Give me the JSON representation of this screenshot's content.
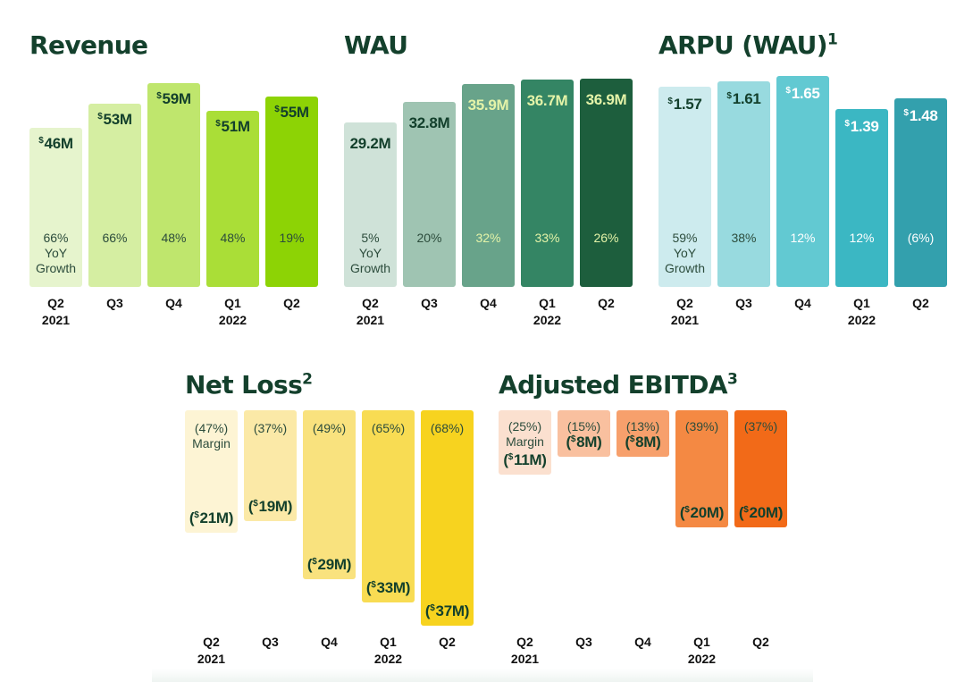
{
  "chart_data": [
    {
      "type": "bar",
      "key": "revenue",
      "title": "Revenue",
      "title_superscript": "",
      "categories": [
        "Q2\n2021",
        "Q3",
        "Q4",
        "Q1\n2022",
        "Q2"
      ],
      "values": [
        46,
        53,
        59,
        51,
        55
      ],
      "value_labels": [
        "46M",
        "53M",
        "59M",
        "51M",
        "55M"
      ],
      "value_prefix": "$",
      "value_negative": false,
      "secondary_labels": [
        "66%\nYoY\nGrowth",
        "66%",
        "48%",
        "48%",
        "19%"
      ],
      "secondary_name": "YoY Growth",
      "colors": [
        "#e6f4cd",
        "#d5eea2",
        "#bfe66d",
        "#aade37",
        "#8dd305"
      ],
      "value_colors": [
        "#13402c",
        "#13402c",
        "#13402c",
        "#13402c",
        "#13402c"
      ],
      "secondary_colors": [
        "#2c4c3c",
        "#2c4c3c",
        "#2c4c3c",
        "#2c4c3c",
        "#2c4c3c"
      ],
      "ylim": [
        0,
        62
      ]
    },
    {
      "type": "bar",
      "key": "wau",
      "title": "WAU",
      "title_superscript": "",
      "categories": [
        "Q2\n2021",
        "Q3",
        "Q4",
        "Q1\n2022",
        "Q2"
      ],
      "values": [
        29.2,
        32.8,
        35.9,
        36.7,
        36.9
      ],
      "value_labels": [
        "29.2M",
        "32.8M",
        "35.9M",
        "36.7M",
        "36.9M"
      ],
      "value_prefix": "",
      "value_negative": false,
      "secondary_labels": [
        "5%\nYoY\nGrowth",
        "20%",
        "32%",
        "33%",
        "26%"
      ],
      "secondary_name": "YoY Growth",
      "colors": [
        "#cfe2d8",
        "#9fc4b2",
        "#68a38a",
        "#348564",
        "#1d5e3d"
      ],
      "value_colors": [
        "#13402c",
        "#13402c",
        "#e4f3a8",
        "#e4f3a8",
        "#e4f3a8"
      ],
      "secondary_colors": [
        "#2c4c3c",
        "#2c4c3c",
        "#e4f3a8",
        "#e4f3a8",
        "#e4f3a8"
      ],
      "ylim": [
        0,
        38
      ]
    },
    {
      "type": "bar",
      "key": "arpu",
      "title": "ARPU (WAU)",
      "title_superscript": "1",
      "categories": [
        "Q2\n2021",
        "Q3",
        "Q4",
        "Q1\n2022",
        "Q2"
      ],
      "values": [
        1.57,
        1.61,
        1.65,
        1.39,
        1.48
      ],
      "value_labels": [
        "1.57",
        "1.61",
        "1.65",
        "1.39",
        "1.48"
      ],
      "value_prefix": "$",
      "value_negative": false,
      "secondary_labels": [
        "59%\nYoY\nGrowth",
        "38%",
        "12%",
        "12%",
        "(6%)"
      ],
      "secondary_name": "YoY Growth",
      "colors": [
        "#cdebee",
        "#98dadf",
        "#62c9d2",
        "#3bb7c3",
        "#33a0ad"
      ],
      "value_colors": [
        "#13402c",
        "#13402c",
        "#ffffff",
        "#ffffff",
        "#ffffff"
      ],
      "secondary_colors": [
        "#2c4c3c",
        "#2c4c3c",
        "#ffffff",
        "#ffffff",
        "#ffffff"
      ],
      "ylim": [
        0,
        1.68
      ]
    },
    {
      "type": "bar",
      "key": "net_loss",
      "title": "Net Loss",
      "title_superscript": "2",
      "categories": [
        "Q2\n2021",
        "Q3",
        "Q4",
        "Q1\n2022",
        "Q2"
      ],
      "values": [
        -21,
        -19,
        -29,
        -33,
        -37
      ],
      "value_labels": [
        "21M",
        "19M",
        "29M",
        "33M",
        "37M"
      ],
      "value_prefix": "$",
      "value_negative": true,
      "secondary_labels": [
        "(47%)\nMargin",
        "(37%)",
        "(49%)",
        "(65%)",
        "(68%)"
      ],
      "secondary_name": "Margin",
      "colors": [
        "#fdf4d4",
        "#fbe9a7",
        "#f9e27e",
        "#f8dc53",
        "#f7d31f"
      ],
      "value_colors": [
        "#13402c",
        "#13402c",
        "#13402c",
        "#13402c",
        "#13402c"
      ],
      "secondary_colors": [
        "#2c4c3c",
        "#2c4c3c",
        "#2c4c3c",
        "#2c4c3c",
        "#2c4c3c"
      ],
      "ylim": [
        -37,
        0
      ]
    },
    {
      "type": "bar",
      "key": "adj_ebitda",
      "title": "Adjusted EBITDA",
      "title_superscript": "3",
      "categories": [
        "Q2\n2021",
        "Q3",
        "Q4",
        "Q1\n2022",
        "Q2"
      ],
      "values": [
        -11,
        -8,
        -8,
        -20,
        -20
      ],
      "value_labels": [
        "11M",
        "8M",
        "8M",
        "20M",
        "20M"
      ],
      "value_prefix": "$",
      "value_negative": true,
      "secondary_labels": [
        "(25%)\nMargin",
        "(15%)",
        "(13%)",
        "(39%)",
        "(37%)"
      ],
      "secondary_name": "Margin",
      "colors": [
        "#fbe0cf",
        "#f9c09f",
        "#f7a06c",
        "#f48943",
        "#f26a18"
      ],
      "value_colors": [
        "#13402c",
        "#13402c",
        "#13402c",
        "#13402c",
        "#13402c"
      ],
      "secondary_colors": [
        "#2c4c3c",
        "#2c4c3c",
        "#2c4c3c",
        "#2c4c3c",
        "#2c4c3c"
      ],
      "ylim": [
        -20,
        0
      ]
    }
  ]
}
